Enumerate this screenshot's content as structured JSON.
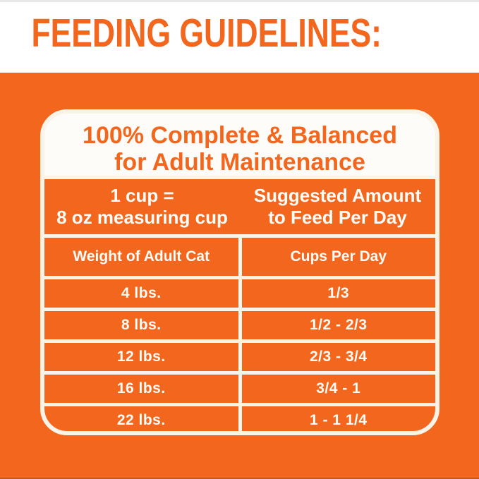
{
  "colors": {
    "orange": "#F3661D",
    "cream_lines": "#FAF3E8",
    "title_background": "#FEFCF8",
    "text_white": "#FFFDF8"
  },
  "header": {
    "title": "FEEDING GUIDELINES:"
  },
  "panel": {
    "heading": {
      "line1": "100% Complete & Balanced",
      "line2": "for Adult Maintenance"
    },
    "measure_header": {
      "left_line1": "1 cup =",
      "left_line2": "8 oz measuring cup",
      "right_line1": "Suggested Amount",
      "right_line2": "to Feed Per Day"
    },
    "table": {
      "columns": [
        "Weight of Adult Cat",
        "Cups Per Day"
      ],
      "rows": [
        {
          "weight": "4 lbs.",
          "cups": "1/3"
        },
        {
          "weight": "8 lbs.",
          "cups": "1/2 - 2/3"
        },
        {
          "weight": "12 lbs.",
          "cups": "2/3 - 3/4"
        },
        {
          "weight": "16 lbs.",
          "cups": "3/4 - 1"
        },
        {
          "weight": "22 lbs.",
          "cups": "1 - 1 1/4"
        }
      ]
    }
  }
}
